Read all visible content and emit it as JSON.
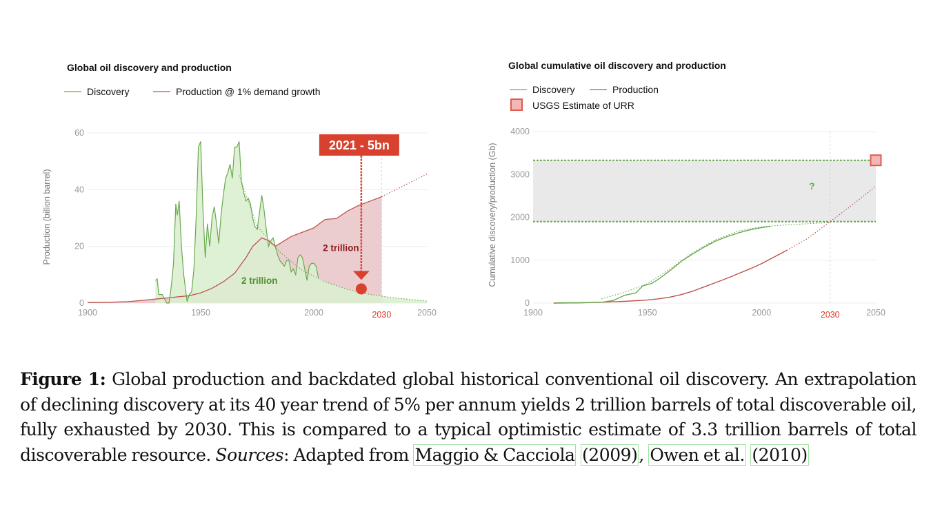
{
  "chart_data": [
    {
      "type": "area",
      "title": "Global oil discovery and production",
      "ylabel": "Production (billion barrel)",
      "xlabel": "",
      "xlim": [
        1900,
        2050
      ],
      "ylim": [
        0,
        60
      ],
      "x_ticks": [
        1900,
        1950,
        2000,
        2050
      ],
      "y_ticks": [
        0,
        20,
        40,
        60
      ],
      "highlight_x_tick": 2030,
      "grid": true,
      "legend_position": "top-left",
      "legend": [
        "Discovery",
        "Production @ 1% demand growth"
      ],
      "series": [
        {
          "name": "Discovery",
          "color": "#6aa84f",
          "fill": "#dcefcf",
          "points": [
            [
              1930,
              8
            ],
            [
              1930.8,
              8.5
            ],
            [
              1931.5,
              3
            ],
            [
              1933,
              3
            ],
            [
              1934,
              1.5
            ],
            [
              1935,
              0
            ],
            [
              1936,
              0
            ],
            [
              1937,
              6
            ],
            [
              1938,
              14
            ],
            [
              1939,
              35
            ],
            [
              1939.7,
              31
            ],
            [
              1940.5,
              36
            ],
            [
              1941.5,
              20
            ],
            [
              1942.5,
              10
            ],
            [
              1944,
              0.5
            ],
            [
              1945,
              3
            ],
            [
              1946,
              4
            ],
            [
              1947,
              12
            ],
            [
              1948,
              30
            ],
            [
              1949,
              55
            ],
            [
              1950,
              57
            ],
            [
              1951,
              33
            ],
            [
              1952,
              16
            ],
            [
              1953,
              28
            ],
            [
              1954,
              20
            ],
            [
              1955,
              30
            ],
            [
              1956,
              34
            ],
            [
              1957,
              28
            ],
            [
              1958,
              21
            ],
            [
              1959,
              31
            ],
            [
              1960,
              38
            ],
            [
              1961,
              44
            ],
            [
              1962,
              46
            ],
            [
              1963,
              49
            ],
            [
              1964,
              44
            ],
            [
              1965,
              55
            ],
            [
              1966,
              55
            ],
            [
              1967,
              57
            ],
            [
              1968,
              43
            ],
            [
              1969,
              39
            ],
            [
              1970,
              36
            ],
            [
              1971,
              37
            ],
            [
              1972,
              35
            ],
            [
              1973,
              30
            ],
            [
              1974,
              27
            ],
            [
              1975,
              26
            ],
            [
              1976,
              32
            ],
            [
              1977,
              38
            ],
            [
              1978,
              33
            ],
            [
              1979,
              26
            ],
            [
              1980,
              20
            ],
            [
              1981,
              22
            ],
            [
              1982,
              23
            ],
            [
              1983,
              20
            ],
            [
              1984,
              17
            ],
            [
              1985,
              15
            ],
            [
              1986,
              14
            ],
            [
              1987,
              13
            ],
            [
              1988,
              15
            ],
            [
              1989,
              15
            ],
            [
              1990,
              11
            ],
            [
              1991,
              12
            ],
            [
              1992,
              10
            ],
            [
              1993,
              16
            ],
            [
              1994,
              17
            ],
            [
              1995,
              16
            ],
            [
              1996,
              12
            ],
            [
              1997,
              8
            ],
            [
              1998,
              13
            ],
            [
              1999,
              14
            ],
            [
              2000,
              14
            ],
            [
              2001,
              13
            ],
            [
              2002,
              9
            ]
          ]
        },
        {
          "name": "Production @ 1% demand growth",
          "color": "#c0504d",
          "fill": "#e8c4c8",
          "points": [
            [
              1900,
              0.2
            ],
            [
              1910,
              0.3
            ],
            [
              1918,
              0.5
            ],
            [
              1925,
              1
            ],
            [
              1930,
              1.4
            ],
            [
              1935,
              1.8
            ],
            [
              1940,
              2.2
            ],
            [
              1945,
              2.6
            ],
            [
              1950,
              3.6
            ],
            [
              1955,
              5.2
            ],
            [
              1960,
              7.5
            ],
            [
              1965,
              10.5
            ],
            [
              1970,
              16
            ],
            [
              1973,
              20
            ],
            [
              1975,
              21.5
            ],
            [
              1977,
              23
            ],
            [
              1980,
              22
            ],
            [
              1983,
              20
            ],
            [
              1985,
              21
            ],
            [
              1990,
              23.5
            ],
            [
              1995,
              25
            ],
            [
              2000,
              26.5
            ],
            [
              2005,
              29.5
            ],
            [
              2010,
              29.8
            ],
            [
              2015,
              32.5
            ],
            [
              2020,
              34.5
            ],
            [
              2025,
              36
            ],
            [
              2030,
              37.5
            ]
          ]
        }
      ],
      "projections": {
        "discovery_decline": [
          [
            1967,
            45
          ],
          [
            1975,
            27
          ],
          [
            1985,
            18
          ],
          [
            1995,
            11.5
          ],
          [
            2005,
            7.5
          ],
          [
            2015,
            4.8
          ],
          [
            2025,
            3
          ],
          [
            2035,
            1.9
          ],
          [
            2050,
            0.7
          ]
        ],
        "production_extension": [
          [
            2030,
            37.5
          ],
          [
            2040,
            41.5
          ],
          [
            2050,
            45.5
          ]
        ]
      },
      "annotations": [
        {
          "label": "2021 - 5bn",
          "x": 2021,
          "y": 5,
          "color": "#d9412f"
        },
        {
          "label": "2 trillion",
          "x": 1976,
          "y": 8,
          "color": "#4f8f2a"
        },
        {
          "label": "2 trillion",
          "x": 2012,
          "y": 19.5,
          "color": "#8b1e1e"
        }
      ]
    },
    {
      "type": "line",
      "title": "Global cumulative oil discovery and production",
      "ylabel": "Cumulative discovery/production (Gb)",
      "xlabel": "",
      "xlim": [
        1900,
        2050
      ],
      "ylim": [
        0,
        4000
      ],
      "x_ticks": [
        1900,
        1950,
        2000,
        2050
      ],
      "y_ticks": [
        0,
        1000,
        2000,
        3000,
        4000
      ],
      "highlight_x_tick": 2030,
      "grid": true,
      "legend_position": "top-left",
      "legend": [
        "Discovery",
        "Production",
        "USGS Estimate of URR"
      ],
      "band": {
        "low": 1900,
        "high": 3330,
        "label": "?"
      },
      "urr_marker": {
        "x": 2050,
        "y": 3330
      },
      "series": [
        {
          "name": "Discovery",
          "color": "#6aa84f",
          "points": [
            [
              1910,
              5
            ],
            [
              1920,
              10
            ],
            [
              1930,
              20
            ],
            [
              1935,
              60
            ],
            [
              1938,
              130
            ],
            [
              1940,
              180
            ],
            [
              1945,
              240
            ],
            [
              1948,
              400
            ],
            [
              1952,
              460
            ],
            [
              1955,
              560
            ],
            [
              1960,
              760
            ],
            [
              1965,
              980
            ],
            [
              1970,
              1150
            ],
            [
              1975,
              1310
            ],
            [
              1980,
              1450
            ],
            [
              1985,
              1550
            ],
            [
              1990,
              1640
            ],
            [
              1995,
              1710
            ],
            [
              2000,
              1760
            ],
            [
              2004,
              1790
            ]
          ]
        },
        {
          "name": "Production",
          "color": "#c0504d",
          "points": [
            [
              1909,
              0
            ],
            [
              1920,
              5
            ],
            [
              1930,
              20
            ],
            [
              1940,
              40
            ],
            [
              1950,
              70
            ],
            [
              1955,
              100
            ],
            [
              1960,
              140
            ],
            [
              1965,
              200
            ],
            [
              1970,
              280
            ],
            [
              1975,
              380
            ],
            [
              1980,
              480
            ],
            [
              1985,
              580
            ],
            [
              1990,
              690
            ],
            [
              1995,
              800
            ],
            [
              2000,
              920
            ],
            [
              2005,
              1060
            ],
            [
              2010,
              1200
            ],
            [
              2011,
              1230
            ]
          ]
        }
      ],
      "projections": {
        "discovery_fit": [
          [
            1930,
            100
          ],
          [
            1940,
            250
          ],
          [
            1950,
            450
          ],
          [
            1960,
            800
          ],
          [
            1970,
            1180
          ],
          [
            1980,
            1480
          ],
          [
            1990,
            1680
          ],
          [
            2000,
            1780
          ],
          [
            2010,
            1820
          ],
          [
            2020,
            1850
          ],
          [
            2030,
            1880
          ]
        ],
        "production_extension": [
          [
            2011,
            1230
          ],
          [
            2020,
            1500
          ],
          [
            2030,
            1900
          ],
          [
            2040,
            2300
          ],
          [
            2050,
            2730
          ]
        ]
      }
    }
  ],
  "annotation_callout": "2021 - 5bn",
  "label_left_discovery": "2 trillion",
  "label_left_production": "2 trillion",
  "label_band": "?",
  "caption": {
    "figure_label": "Figure 1:",
    "text_1": " Global production and backdated global historical conventional oil discovery. An extrapolation of declining discovery at its 40 year trend of 5% per annum yields 2 trillion barrels of total discoverable oil, fully exhausted by 2030. This is compared to a typical optimistic estimate of 3.3 trillion barrels of total discoverable resource. ",
    "sources_label": "Sources",
    "text_2": ": Adapted from ",
    "ref1": "Maggio & Cacciola",
    "ref1_year": "(2009)",
    "sep": ", ",
    "ref2": "Owen et al.",
    "ref2_year": "(2010)"
  },
  "colors": {
    "discovery": "#6aa84f",
    "discovery_fill": "#dcefcf",
    "production": "#c0504d",
    "production_fill": "#e8c4c8",
    "highlight": "#d9412f",
    "band": "#e9e9e9"
  }
}
